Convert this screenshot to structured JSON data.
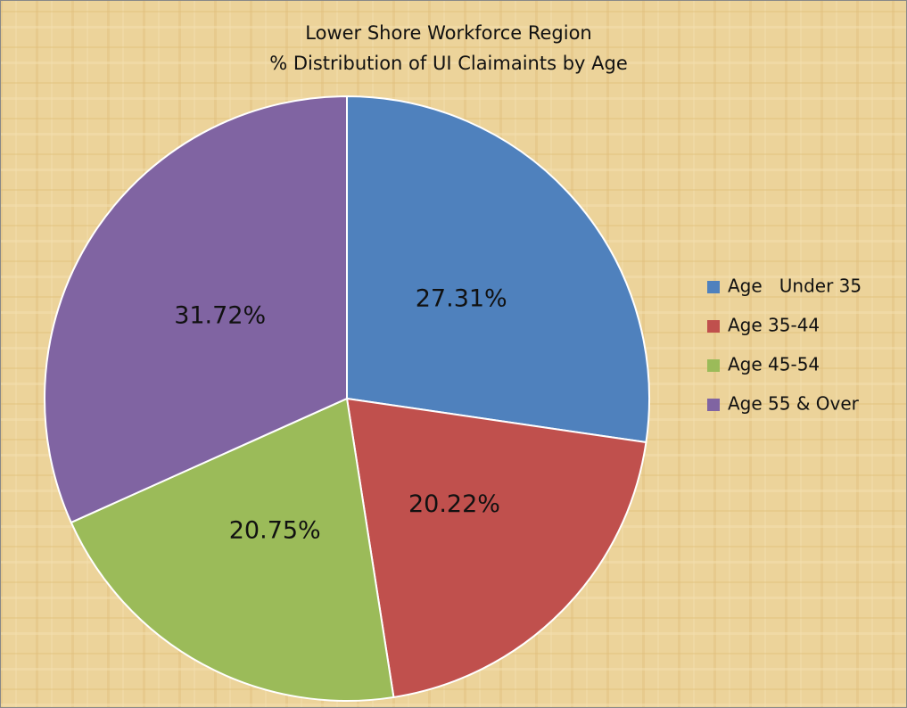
{
  "chart_data": {
    "type": "pie",
    "title": "Lower Shore Workforce Region",
    "subtitle": "% Distribution of UI Claimaints by Age",
    "categories": [
      "Age   Under 35",
      "Age 35-44",
      "Age 45-54",
      "Age 55 & Over"
    ],
    "values": [
      27.31,
      20.22,
      20.75,
      31.72
    ],
    "value_labels": [
      "27.31%",
      "20.22%",
      "20.75%",
      "31.72%"
    ],
    "colors": [
      "#4f81bd",
      "#c0504d",
      "#9bbb59",
      "#8064a2"
    ],
    "legend": "right"
  }
}
